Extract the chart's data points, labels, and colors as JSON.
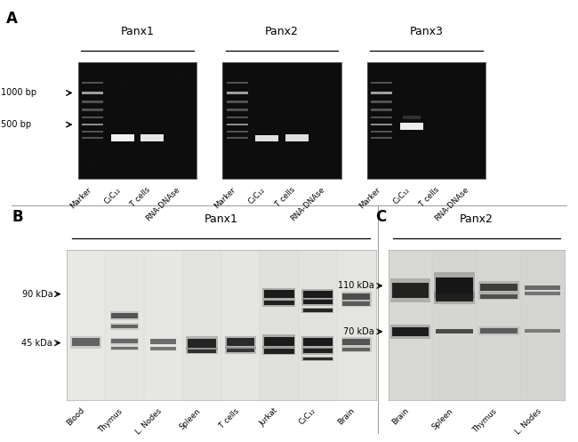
{
  "fig_width": 6.5,
  "fig_height": 4.97,
  "dpi": 100,
  "bg_color": "#ffffff",
  "panel_A_label": "A",
  "panel_B_label": "B",
  "panel_C_label": "C",
  "gel_titles": [
    "Panx1",
    "Panx2",
    "Panx3"
  ],
  "gel_xlabels": [
    [
      "Marker",
      "C₂C₁₂",
      "T cells",
      "RNA-DNAse"
    ],
    [
      "Marker",
      "C₂C₁₂",
      "T cells",
      "RNA-DNAse"
    ],
    [
      "Marker",
      "C₂C₁₂",
      "T cells",
      "RNA-DNAse"
    ]
  ],
  "wb_B_title": "Panx1",
  "wb_B_xlabels": [
    "Blood",
    "Thymus",
    "L. Nodes",
    "Spleen",
    "T cells",
    "Jurkat",
    "C₂C₁₂",
    "Brain"
  ],
  "wb_B_ymarkers": [
    "90 kDa",
    "45 kDa"
  ],
  "wb_C_title": "Panx2",
  "wb_C_xlabels": [
    "Brain",
    "Spleen",
    "Thymus",
    "L. Nodes"
  ],
  "wb_C_ymarkers": [
    "110 kDa",
    "70 kDa"
  ],
  "bp_markers": [
    "1000 bp",
    "500 bp"
  ],
  "label_fontsize": 10,
  "tick_fontsize": 7,
  "title_fontsize": 9,
  "marker_fontsize": 7
}
